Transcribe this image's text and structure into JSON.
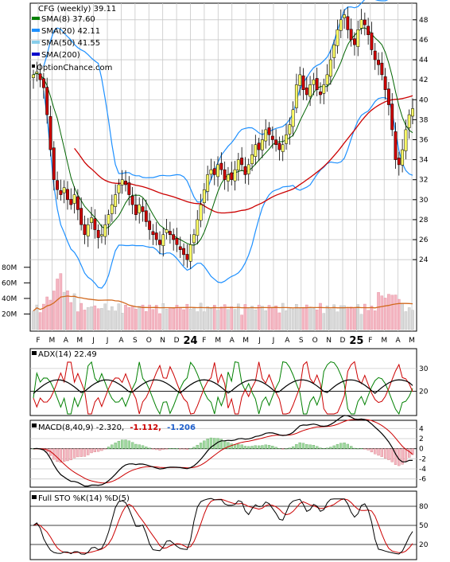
{
  "main": {
    "title": "CFG (weekly) 39.11",
    "legend": [
      {
        "label": "SMA(8) 37.60",
        "color": "#008000"
      },
      {
        "label": "SMA(20) 42.11",
        "color": "#1e90ff"
      },
      {
        "label": "SMA(50) 41.55",
        "color": "#87ceeb"
      },
      {
        "label": "SMA(200)",
        "color": "#0000cc"
      }
    ],
    "watermark": "OptionChance.com",
    "price_ticks": [
      "48",
      "46",
      "44",
      "42",
      "40",
      "38",
      "36",
      "34",
      "32",
      "30",
      "28",
      "26",
      "24"
    ],
    "volume_ticks": [
      "80M",
      "60M",
      "40M",
      "20M"
    ]
  },
  "x_axis": {
    "labels": [
      "F",
      "M",
      "A",
      "M",
      "J",
      "J",
      "A",
      "S",
      "O",
      "N",
      "D",
      "24",
      "F",
      "M",
      "A",
      "M",
      "J",
      "J",
      "A",
      "S",
      "O",
      "N",
      "D",
      "25",
      "F",
      "M",
      "A",
      "M"
    ]
  },
  "adx": {
    "label": "ADX(14) 22.49",
    "ticks": [
      "30",
      "20"
    ]
  },
  "macd": {
    "label": "MACD(8,40,9) -2.320,",
    "signal": "-1.112,",
    "hist": "-1.206",
    "signal_color": "#cc0000",
    "hist_color": "#1e5fcc",
    "ticks": [
      "4",
      "2",
      "0",
      "-2",
      "-4",
      "-6"
    ]
  },
  "stoch": {
    "label": "Full STO %K(14) %D(5)",
    "ticks": [
      "80",
      "50",
      "20"
    ]
  },
  "chart_data": {
    "type": "candlestick",
    "ticker": "CFG",
    "interval": "weekly",
    "last": 39.11,
    "ylim": [
      22.5,
      49.5
    ],
    "closes": [
      42.5,
      42.8,
      42.0,
      41.2,
      38.5,
      35.0,
      32.0,
      31.0,
      30.5,
      31.2,
      30.0,
      29.5,
      30.5,
      29.0,
      27.5,
      26.5,
      27.5,
      28.2,
      27.0,
      26.2,
      26.5,
      27.5,
      28.5,
      29.5,
      30.5,
      31.5,
      32.0,
      31.5,
      30.5,
      29.5,
      28.5,
      29.5,
      28.8,
      27.8,
      27.0,
      26.5,
      26.0,
      25.5,
      26.5,
      27.0,
      26.5,
      26.0,
      25.5,
      25.0,
      24.5,
      24.0,
      25.5,
      26.5,
      28.0,
      29.5,
      31.0,
      32.5,
      33.0,
      32.5,
      33.5,
      33.0,
      32.0,
      32.5,
      32.0,
      33.0,
      34.0,
      33.5,
      32.5,
      33.5,
      34.5,
      35.5,
      35.0,
      36.0,
      37.0,
      36.5,
      36.0,
      35.5,
      35.0,
      35.5,
      36.5,
      37.5,
      39.0,
      41.5,
      42.5,
      41.0,
      40.5,
      41.5,
      42.0,
      41.0,
      40.5,
      41.5,
      42.5,
      44.0,
      45.5,
      47.0,
      48.0,
      48.5,
      47.0,
      46.0,
      45.5,
      47.0,
      48.0,
      47.5,
      46.5,
      45.0,
      44.0,
      43.5,
      42.5,
      41.0,
      39.5,
      37.0,
      34.0,
      33.5,
      35.0,
      37.0,
      38.5,
      39.11
    ],
    "sma8": {
      "name": "SMA(8)",
      "last": 37.6
    },
    "sma20": {
      "name": "SMA(20)",
      "last": 42.11
    },
    "sma50": {
      "name": "SMA(50)",
      "last": 41.55
    },
    "volume_ylim": [
      0,
      90
    ],
    "adx": {
      "last": 22.49,
      "ylim": [
        10,
        38
      ]
    },
    "macd": {
      "macd": -2.32,
      "signal": -1.112,
      "hist": -1.206,
      "ylim": [
        -7,
        5
      ]
    },
    "stoch": {
      "ylim": [
        0,
        100
      ]
    }
  }
}
